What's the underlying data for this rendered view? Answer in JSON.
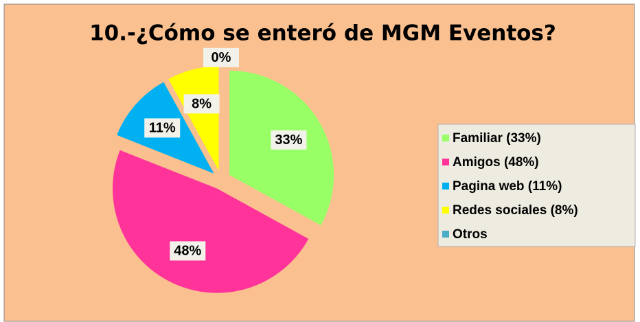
{
  "chart_data": {
    "type": "pie",
    "title": "10.-¿Cómo se enteró de MGM Eventos?",
    "categories": [
      "Familiar (33%)",
      "Amigos (48%)",
      "Pagina web (11%)",
      "Redes sociales (8%)",
      "Otros"
    ],
    "values": [
      33,
      48,
      11,
      8,
      0
    ],
    "value_labels": [
      "33%",
      "48%",
      "11%",
      "8%",
      "0%"
    ],
    "colors": [
      "#99ff66",
      "#ff3399",
      "#00b0f0",
      "#ffff00",
      "#4bacc6"
    ],
    "legend": "right"
  }
}
